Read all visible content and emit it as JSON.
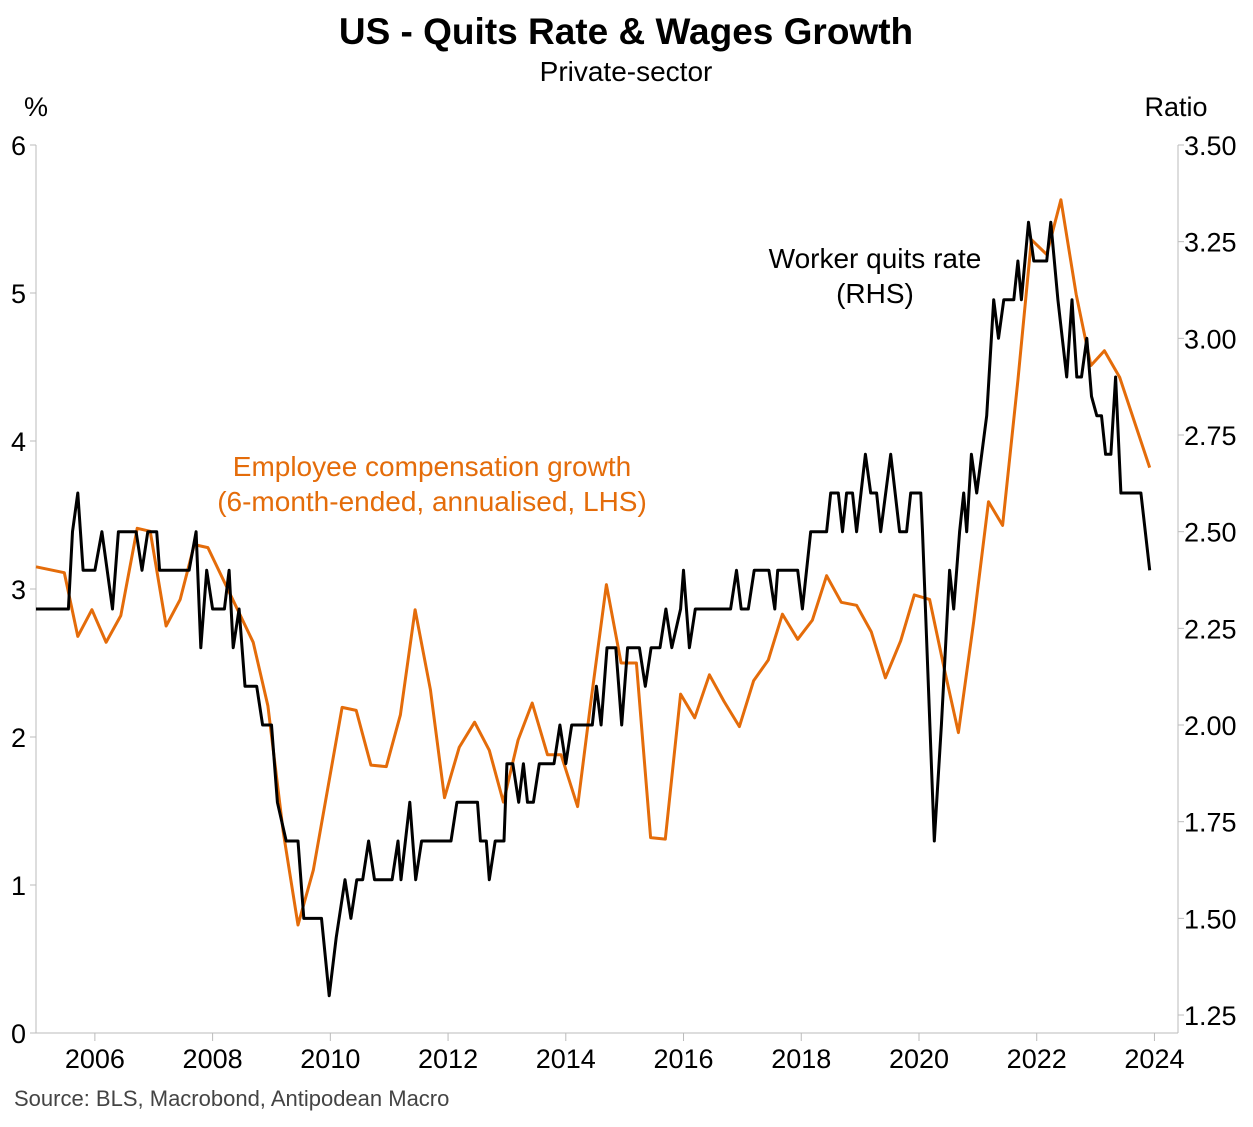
{
  "chart_data": {
    "type": "line",
    "title": "US - Quits Rate & Wages Growth",
    "subtitle": "Private-sector",
    "y_label": "%",
    "y2_label": "Ratio",
    "source": "Source: BLS, Macrobond, Antipodean Macro",
    "xlim": [
      2005,
      2024.4
    ],
    "xticks": [
      2006,
      2008,
      2010,
      2012,
      2014,
      2016,
      2018,
      2020,
      2022,
      2024
    ],
    "ylim": [
      0,
      6
    ],
    "yticks": [
      0,
      1,
      2,
      3,
      4,
      5,
      6
    ],
    "y2lim": [
      1.2035,
      3.5
    ],
    "y2ticks": [
      {
        "value": 1.25,
        "label": "1.25"
      },
      {
        "value": 1.5,
        "label": "1.50"
      },
      {
        "value": 1.75,
        "label": "1.75"
      },
      {
        "value": 2.0,
        "label": "2.00"
      },
      {
        "value": 2.25,
        "label": "2.25"
      },
      {
        "value": 2.5,
        "label": "2.50"
      },
      {
        "value": 2.75,
        "label": "2.75"
      },
      {
        "value": 3.0,
        "label": "3.00"
      },
      {
        "value": 3.25,
        "label": "3.25"
      },
      {
        "value": 3.5,
        "label": "3.50"
      }
    ],
    "annotations": [
      {
        "lines": [
          "Employee compensation growth",
          "(6-month-ended, annualised, LHS)"
        ],
        "color": "#E46C0A"
      },
      {
        "lines": [
          "Worker quits rate",
          "(RHS)"
        ],
        "color": "#000000"
      }
    ],
    "series": [
      {
        "color": "#E46C0A",
        "x": [
          2005.0,
          2005.48,
          2005.71,
          2005.95,
          2006.19,
          2006.44,
          2006.72,
          2006.94,
          2007.21,
          2007.45,
          2007.69,
          2007.92,
          2008.69,
          2008.94,
          2009.2,
          2009.45,
          2009.71,
          2010.2,
          2010.44,
          2010.69,
          2010.95,
          2011.19,
          2011.44,
          2011.7,
          2011.94,
          2012.19,
          2012.45,
          2012.7,
          2012.94,
          2013.19,
          2013.43,
          2013.69,
          2013.92,
          2014.2,
          2014.43,
          2014.69,
          2014.94,
          2015.2,
          2015.44,
          2015.69,
          2015.95,
          2016.19,
          2016.44,
          2016.69,
          2016.95,
          2017.19,
          2017.44,
          2017.68,
          2017.94,
          2018.19,
          2018.43,
          2018.68,
          2018.94,
          2019.19,
          2019.43,
          2019.69,
          2019.92,
          2020.18,
          2020.43,
          2020.67,
          2020.93,
          2021.18,
          2021.42,
          2021.68,
          2021.91,
          2022.17,
          2022.41,
          2022.67,
          2022.92,
          2023.15,
          2023.41,
          2023.92
        ],
        "values": [
          3.15,
          3.11,
          2.68,
          2.86,
          2.64,
          2.82,
          3.41,
          3.39,
          2.75,
          2.93,
          3.3,
          3.28,
          2.64,
          2.21,
          1.36,
          0.73,
          1.1,
          2.2,
          2.18,
          1.81,
          1.8,
          2.15,
          2.86,
          2.32,
          1.59,
          1.93,
          2.1,
          1.91,
          1.56,
          1.98,
          2.23,
          1.88,
          1.88,
          1.53,
          2.25,
          3.03,
          2.5,
          2.5,
          1.32,
          1.31,
          2.29,
          2.13,
          2.42,
          2.24,
          2.07,
          2.38,
          2.52,
          2.83,
          2.66,
          2.79,
          3.09,
          2.91,
          2.89,
          2.71,
          2.4,
          2.65,
          2.96,
          2.93,
          2.46,
          2.03,
          2.78,
          3.59,
          3.43,
          4.41,
          5.36,
          5.26,
          5.63,
          4.99,
          4.51,
          4.61,
          4.43,
          3.82
        ]
      },
      {
        "color": "#000000",
        "axis": "y2",
        "x": [
          2005.0,
          2005.55,
          2005.62,
          2005.71,
          2005.8,
          2006.0,
          2006.12,
          2006.3,
          2006.4,
          2006.7,
          2006.8,
          2006.9,
          2007.05,
          2007.1,
          2007.6,
          2007.72,
          2007.8,
          2007.9,
          2008.0,
          2008.2,
          2008.28,
          2008.35,
          2008.45,
          2008.55,
          2008.75,
          2008.85,
          2009.0,
          2009.1,
          2009.25,
          2009.45,
          2009.55,
          2009.85,
          2009.98,
          2010.1,
          2010.25,
          2010.35,
          2010.45,
          2010.55,
          2010.65,
          2010.75,
          2011.05,
          2011.15,
          2011.2,
          2011.35,
          2011.45,
          2011.55,
          2012.05,
          2012.15,
          2012.5,
          2012.55,
          2012.65,
          2012.7,
          2012.8,
          2012.95,
          2013.0,
          2013.1,
          2013.2,
          2013.28,
          2013.35,
          2013.45,
          2013.55,
          2013.8,
          2013.9,
          2014.0,
          2014.1,
          2014.45,
          2014.52,
          2014.6,
          2014.7,
          2014.85,
          2014.95,
          2015.05,
          2015.25,
          2015.35,
          2015.45,
          2015.6,
          2015.7,
          2015.8,
          2015.95,
          2016.0,
          2016.1,
          2016.2,
          2016.8,
          2016.9,
          2016.98,
          2017.1,
          2017.2,
          2017.45,
          2017.55,
          2017.6,
          2017.9,
          2017.94,
          2018.02,
          2018.16,
          2018.43,
          2018.5,
          2018.63,
          2018.7,
          2018.77,
          2018.87,
          2018.94,
          2019.09,
          2019.18,
          2019.28,
          2019.35,
          2019.52,
          2019.67,
          2019.79,
          2019.86,
          2020.03,
          2020.06,
          2020.26,
          2020.38,
          2020.52,
          2020.59,
          2020.69,
          2020.76,
          2020.81,
          2020.89,
          2020.98,
          2021.15,
          2021.27,
          2021.35,
          2021.44,
          2021.61,
          2021.68,
          2021.74,
          2021.86,
          2021.95,
          2022.17,
          2022.24,
          2022.36,
          2022.51,
          2022.6,
          2022.68,
          2022.76,
          2022.85,
          2022.93,
          2023.02,
          2023.1,
          2023.17,
          2023.26,
          2023.34,
          2023.43,
          2023.77,
          2023.92
        ],
        "values": [
          2.3,
          2.3,
          2.5,
          2.6,
          2.4,
          2.4,
          2.5,
          2.3,
          2.5,
          2.5,
          2.4,
          2.5,
          2.5,
          2.4,
          2.4,
          2.5,
          2.2,
          2.4,
          2.3,
          2.3,
          2.4,
          2.2,
          2.3,
          2.1,
          2.1,
          2.0,
          2.0,
          1.8,
          1.7,
          1.7,
          1.5,
          1.5,
          1.3,
          1.45,
          1.6,
          1.5,
          1.6,
          1.6,
          1.7,
          1.6,
          1.6,
          1.7,
          1.6,
          1.8,
          1.6,
          1.7,
          1.7,
          1.8,
          1.8,
          1.7,
          1.7,
          1.6,
          1.7,
          1.7,
          1.9,
          1.9,
          1.8,
          1.9,
          1.8,
          1.8,
          1.9,
          1.9,
          2.0,
          1.9,
          2.0,
          2.0,
          2.1,
          2.0,
          2.2,
          2.2,
          2.0,
          2.2,
          2.2,
          2.1,
          2.2,
          2.2,
          2.3,
          2.2,
          2.3,
          2.4,
          2.2,
          2.3,
          2.3,
          2.4,
          2.3,
          2.3,
          2.4,
          2.4,
          2.3,
          2.4,
          2.4,
          2.4,
          2.3,
          2.5,
          2.5,
          2.6,
          2.6,
          2.5,
          2.6,
          2.6,
          2.5,
          2.7,
          2.6,
          2.6,
          2.5,
          2.7,
          2.5,
          2.5,
          2.6,
          2.6,
          2.5,
          1.7,
          2.0,
          2.4,
          2.3,
          2.5,
          2.6,
          2.5,
          2.7,
          2.6,
          2.8,
          3.1,
          3.0,
          3.1,
          3.1,
          3.2,
          3.1,
          3.3,
          3.2,
          3.2,
          3.3,
          3.1,
          2.9,
          3.1,
          2.9,
          2.9,
          3.0,
          2.85,
          2.8,
          2.8,
          2.7,
          2.7,
          2.9,
          2.6,
          2.6,
          2.4
        ]
      }
    ]
  }
}
